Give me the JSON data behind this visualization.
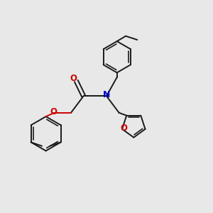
{
  "bg_color": "#e8e8e8",
  "bond_color": "#1a1a1a",
  "n_color": "#0000cd",
  "o_color": "#cc0000",
  "line_width": 1.4,
  "figsize": [
    3.0,
    3.0
  ],
  "dpi": 100,
  "xlim": [
    0,
    10
  ],
  "ylim": [
    0,
    10
  ],
  "N": [
    5.0,
    5.5
  ],
  "carbonyl_C": [
    3.9,
    5.5
  ],
  "carbonyl_O": [
    3.55,
    6.3
  ],
  "alpha_C": [
    3.3,
    4.7
  ],
  "ether_O": [
    2.5,
    4.7
  ],
  "phenoxy_C1": [
    2.1,
    3.7
  ],
  "benzyl_CH2": [
    5.5,
    6.4
  ],
  "furanyl_CH2": [
    5.6,
    4.7
  ],
  "furan_C2": [
    6.3,
    4.1
  ],
  "ring1_r": 0.75,
  "ring2_r": 0.82,
  "furan_r": 0.58
}
